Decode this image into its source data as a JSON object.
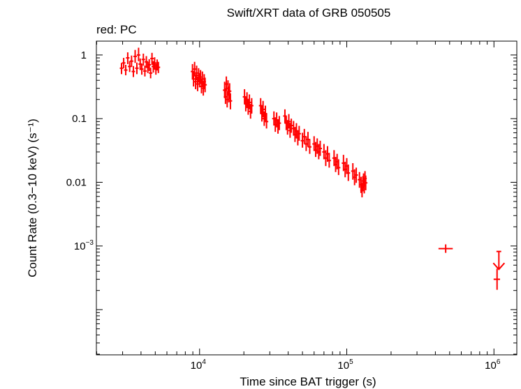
{
  "chart_data": {
    "type": "scatter",
    "title": "Swift/XRT data of GRB 050505",
    "subtitle": "red: PC",
    "xlabel": "Time since BAT trigger (s)",
    "ylabel": "Count Rate (0.3−10 keV) (s⁻¹)",
    "xscale": "log",
    "yscale": "log",
    "xlim": [
      1990,
      1430000
    ],
    "ylim": [
      1.95e-05,
      1.65
    ],
    "x_ticks": [
      {
        "value": 10000,
        "label_base": "10",
        "label_exp": "4"
      },
      {
        "value": 100000,
        "label_base": "10",
        "label_exp": "5"
      },
      {
        "value": 1000000,
        "label_base": "10",
        "label_exp": "6"
      }
    ],
    "y_ticks": [
      {
        "value": 1,
        "label_base": "1",
        "label_exp": ""
      },
      {
        "value": 0.1,
        "label_base": "0.1",
        "label_exp": ""
      },
      {
        "value": 0.01,
        "label_base": "0.01",
        "label_exp": ""
      },
      {
        "value": 0.001,
        "label_base": "10",
        "label_exp": "−3"
      }
    ],
    "grid": false,
    "color": "#ff0000",
    "series": [
      {
        "points": [
          [
            2950,
            0.62,
            0.5,
            0.75
          ],
          [
            3050,
            0.75,
            0.62,
            0.9
          ],
          [
            3150,
            0.58,
            0.48,
            0.7
          ],
          [
            3250,
            0.9,
            0.72,
            1.1
          ],
          [
            3350,
            0.66,
            0.54,
            0.8
          ],
          [
            3450,
            0.8,
            0.65,
            0.98
          ],
          [
            3550,
            0.55,
            0.45,
            0.67
          ],
          [
            3650,
            0.95,
            0.75,
            1.2
          ],
          [
            3750,
            0.62,
            0.5,
            0.76
          ],
          [
            3850,
            1.0,
            0.8,
            1.3
          ],
          [
            3950,
            0.72,
            0.58,
            0.88
          ],
          [
            4050,
            0.6,
            0.49,
            0.73
          ],
          [
            4150,
            0.85,
            0.68,
            1.05
          ],
          [
            4250,
            0.56,
            0.46,
            0.68
          ],
          [
            4350,
            0.78,
            0.63,
            0.96
          ],
          [
            4450,
            0.64,
            0.52,
            0.78
          ],
          [
            4550,
            0.7,
            0.56,
            0.86
          ],
          [
            4650,
            0.52,
            0.43,
            0.63
          ],
          [
            4750,
            0.88,
            0.7,
            1.08
          ],
          [
            4850,
            0.66,
            0.53,
            0.8
          ],
          [
            4950,
            0.75,
            0.6,
            0.92
          ],
          [
            5050,
            0.6,
            0.49,
            0.73
          ],
          [
            5150,
            0.7,
            0.57,
            0.85
          ],
          [
            5250,
            0.64,
            0.52,
            0.78
          ],
          [
            8950,
            0.55,
            0.42,
            0.72
          ],
          [
            9100,
            0.42,
            0.32,
            0.55
          ],
          [
            9250,
            0.6,
            0.46,
            0.78
          ],
          [
            9400,
            0.38,
            0.29,
            0.5
          ],
          [
            9550,
            0.52,
            0.4,
            0.68
          ],
          [
            9700,
            0.35,
            0.27,
            0.46
          ],
          [
            9850,
            0.48,
            0.37,
            0.62
          ],
          [
            10000,
            0.4,
            0.31,
            0.52
          ],
          [
            10150,
            0.45,
            0.35,
            0.58
          ],
          [
            10300,
            0.32,
            0.25,
            0.42
          ],
          [
            10450,
            0.42,
            0.32,
            0.55
          ],
          [
            10600,
            0.3,
            0.23,
            0.39
          ],
          [
            10750,
            0.38,
            0.29,
            0.5
          ],
          [
            10900,
            0.34,
            0.26,
            0.44
          ],
          [
            14800,
            0.28,
            0.21,
            0.38
          ],
          [
            15000,
            0.22,
            0.17,
            0.3
          ],
          [
            15200,
            0.35,
            0.27,
            0.46
          ],
          [
            15400,
            0.2,
            0.15,
            0.27
          ],
          [
            15600,
            0.3,
            0.23,
            0.4
          ],
          [
            15800,
            0.24,
            0.18,
            0.32
          ],
          [
            16000,
            0.27,
            0.2,
            0.36
          ],
          [
            16200,
            0.19,
            0.14,
            0.25
          ],
          [
            20200,
            0.22,
            0.17,
            0.29
          ],
          [
            20600,
            0.17,
            0.13,
            0.22
          ],
          [
            21000,
            0.2,
            0.15,
            0.26
          ],
          [
            21400,
            0.15,
            0.115,
            0.2
          ],
          [
            21800,
            0.18,
            0.14,
            0.24
          ],
          [
            22200,
            0.13,
            0.1,
            0.17
          ],
          [
            22600,
            0.16,
            0.12,
            0.21
          ],
          [
            26000,
            0.16,
            0.12,
            0.21
          ],
          [
            26500,
            0.12,
            0.09,
            0.16
          ],
          [
            27000,
            0.14,
            0.105,
            0.19
          ],
          [
            27500,
            0.1,
            0.077,
            0.13
          ],
          [
            28000,
            0.12,
            0.09,
            0.16
          ],
          [
            28500,
            0.09,
            0.07,
            0.12
          ],
          [
            32000,
            0.1,
            0.078,
            0.13
          ],
          [
            32700,
            0.08,
            0.062,
            0.105
          ],
          [
            33400,
            0.095,
            0.073,
            0.125
          ],
          [
            34100,
            0.075,
            0.058,
            0.098
          ],
          [
            34800,
            0.085,
            0.066,
            0.11
          ],
          [
            38000,
            0.11,
            0.085,
            0.14
          ],
          [
            38800,
            0.085,
            0.066,
            0.11
          ],
          [
            39600,
            0.072,
            0.056,
            0.095
          ],
          [
            40400,
            0.09,
            0.07,
            0.118
          ],
          [
            41200,
            0.065,
            0.05,
            0.086
          ],
          [
            42000,
            0.078,
            0.06,
            0.1
          ],
          [
            43500,
            0.07,
            0.054,
            0.092
          ],
          [
            44500,
            0.056,
            0.043,
            0.074
          ],
          [
            45500,
            0.064,
            0.049,
            0.085
          ],
          [
            46500,
            0.05,
            0.038,
            0.066
          ],
          [
            47500,
            0.058,
            0.045,
            0.077
          ],
          [
            50000,
            0.045,
            0.035,
            0.06
          ],
          [
            51500,
            0.052,
            0.04,
            0.069
          ],
          [
            53000,
            0.04,
            0.031,
            0.053
          ],
          [
            54500,
            0.047,
            0.036,
            0.062
          ],
          [
            56000,
            0.036,
            0.028,
            0.048
          ],
          [
            60000,
            0.04,
            0.031,
            0.053
          ],
          [
            61500,
            0.032,
            0.025,
            0.043
          ],
          [
            63000,
            0.037,
            0.028,
            0.049
          ],
          [
            64500,
            0.03,
            0.023,
            0.04
          ],
          [
            66000,
            0.034,
            0.026,
            0.045
          ],
          [
            70000,
            0.03,
            0.023,
            0.04
          ],
          [
            72000,
            0.024,
            0.018,
            0.032
          ],
          [
            74000,
            0.028,
            0.021,
            0.037
          ],
          [
            76000,
            0.022,
            0.017,
            0.029
          ],
          [
            82000,
            0.024,
            0.018,
            0.032
          ],
          [
            84000,
            0.019,
            0.0145,
            0.025
          ],
          [
            86000,
            0.021,
            0.016,
            0.028
          ],
          [
            88000,
            0.017,
            0.013,
            0.023
          ],
          [
            95000,
            0.02,
            0.015,
            0.027
          ],
          [
            97500,
            0.016,
            0.012,
            0.021
          ],
          [
            100000,
            0.018,
            0.0135,
            0.024
          ],
          [
            102500,
            0.014,
            0.0105,
            0.019
          ],
          [
            110000,
            0.015,
            0.011,
            0.02
          ],
          [
            113000,
            0.012,
            0.009,
            0.016
          ],
          [
            116000,
            0.013,
            0.0098,
            0.017
          ],
          [
            122000,
            0.011,
            0.0082,
            0.0145
          ],
          [
            125000,
            0.0092,
            0.0068,
            0.0122
          ],
          [
            127000,
            0.0075,
            0.0058,
            0.0098
          ],
          [
            128500,
            0.0095,
            0.0072,
            0.0125
          ],
          [
            130000,
            0.0105,
            0.008,
            0.0138
          ],
          [
            131500,
            0.0088,
            0.0067,
            0.0115
          ],
          [
            133000,
            0.0115,
            0.0088,
            0.015
          ],
          [
            134500,
            0.0098,
            0.0075,
            0.0128
          ]
        ],
        "xerr_points": [
          [
            470000,
            0.00091,
            420000,
            525000,
            0.00078,
            0.00106
          ],
          [
            1050000,
            0.0003,
            995000,
            1100000,
            0.000205,
            0.00044
          ]
        ],
        "upper_limit": [
          1080000,
          0.00082,
          1040000,
          1120000,
          0.00043
        ]
      }
    ]
  }
}
